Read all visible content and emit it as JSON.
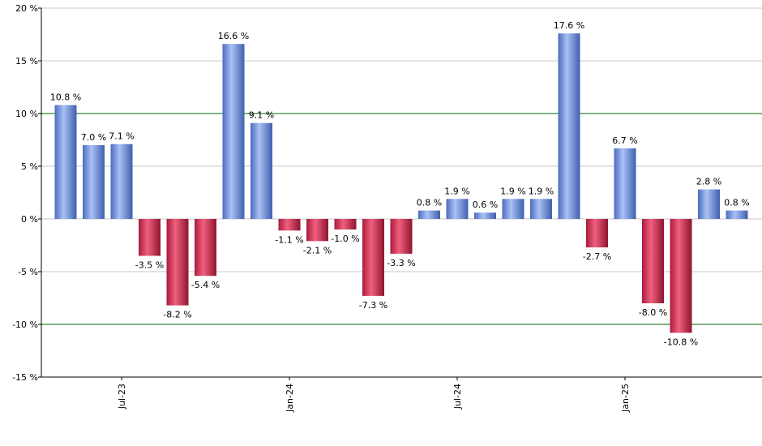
{
  "chart_data": {
    "type": "bar",
    "title": "",
    "xlabel": "",
    "ylabel": "",
    "ylim": [
      -15,
      20
    ],
    "y_ticks": [
      -15,
      -10,
      -5,
      0,
      5,
      10,
      15,
      20
    ],
    "y_tick_labels": [
      "-15 %",
      "-10 %",
      "-5 %",
      "0 %",
      "5 %",
      "10 %",
      "15 %",
      "20 %"
    ],
    "x_tick_labels": [
      {
        "label": "Jul-23",
        "index": 2
      },
      {
        "label": "Jan-24",
        "index": 8
      },
      {
        "label": "Jul-24",
        "index": 14
      },
      {
        "label": "Jan-25",
        "index": 20
      }
    ],
    "values": [
      10.8,
      7.0,
      7.1,
      -3.5,
      -8.2,
      -5.4,
      16.6,
      9.1,
      -1.1,
      -2.1,
      -1.0,
      -7.3,
      -3.3,
      0.8,
      1.9,
      0.6,
      1.9,
      1.9,
      17.6,
      -2.7,
      6.7,
      -8.0,
      -10.8,
      2.8,
      0.8
    ],
    "value_labels": [
      "10.8 %",
      "7.0 %",
      "7.1 %",
      "-3.5 %",
      "-8.2 %",
      "-5.4 %",
      "16.6 %",
      "9.1 %",
      "-1.1 %",
      "-2.1 %",
      "-1.0 %",
      "-7.3 %",
      "-3.3 %",
      "0.8 %",
      "1.9 %",
      "0.6 %",
      "1.9 %",
      "1.9 %",
      "17.6 %",
      "-2.7 %",
      "6.7 %",
      "-8.0 %",
      "-10.8 %",
      "2.8 %",
      "0.8 %"
    ],
    "reference_lines": [
      10,
      -10
    ],
    "grid": true,
    "colors": {
      "positive": "#6f8fd8",
      "negative": "#d23a5a",
      "grid": "#c8c8c8",
      "reference": "#006400",
      "axis": "#000000"
    }
  }
}
